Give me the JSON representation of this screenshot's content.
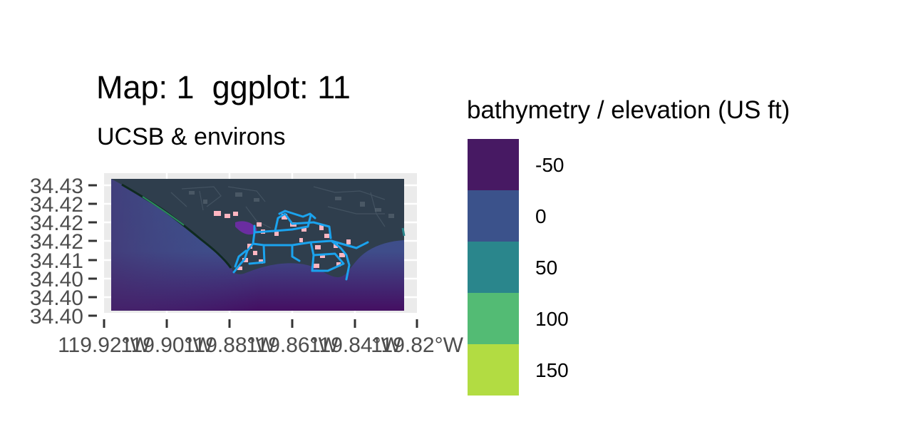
{
  "header": {
    "title": "Map: 1  ggplot: 11",
    "subtitle": "UCSB & environs"
  },
  "map": {
    "panel_background": "#ebebeb",
    "land_color": "#2f3e4d",
    "water_color": "#3b528b",
    "deep_color": "#440f62",
    "building_color": "#ffb6c1",
    "route_color": "#1ba3ee",
    "lagoon_color": "#6a2da0",
    "y_ticks": [
      "34.43",
      "34.42",
      "34.42",
      "34.42",
      "34.41",
      "34.40",
      "34.40",
      "34.40"
    ],
    "x_ticks": [
      "119.92°W",
      "119.90°W",
      "119.88°W",
      "119.86°W",
      "119.84°W",
      "119.82°W"
    ]
  },
  "legend": {
    "title": "bathymetry / elevation (US ft)",
    "items": [
      {
        "label": "-50",
        "color": "#471963"
      },
      {
        "label": "0",
        "color": "#3b528b"
      },
      {
        "label": "50",
        "color": "#2a868c"
      },
      {
        "label": "100",
        "color": "#53bb74"
      },
      {
        "label": "150",
        "color": "#b2dc42"
      }
    ]
  },
  "chart_data": {
    "type": "heatmap",
    "title": "Map: 1  ggplot: 11",
    "subtitle": "UCSB & environs",
    "xlabel": "",
    "ylabel": "",
    "x_tick_labels": [
      "119.92°W",
      "119.90°W",
      "119.88°W",
      "119.86°W",
      "119.84°W",
      "119.82°W"
    ],
    "y_tick_labels": [
      "34.43",
      "34.42",
      "34.42",
      "34.42",
      "34.41",
      "34.40",
      "34.40",
      "34.40"
    ],
    "legend_title": "bathymetry / elevation (US ft)",
    "legend_breaks": [
      -50,
      0,
      50,
      100,
      150
    ],
    "legend_placement": "right",
    "grid": true
  }
}
